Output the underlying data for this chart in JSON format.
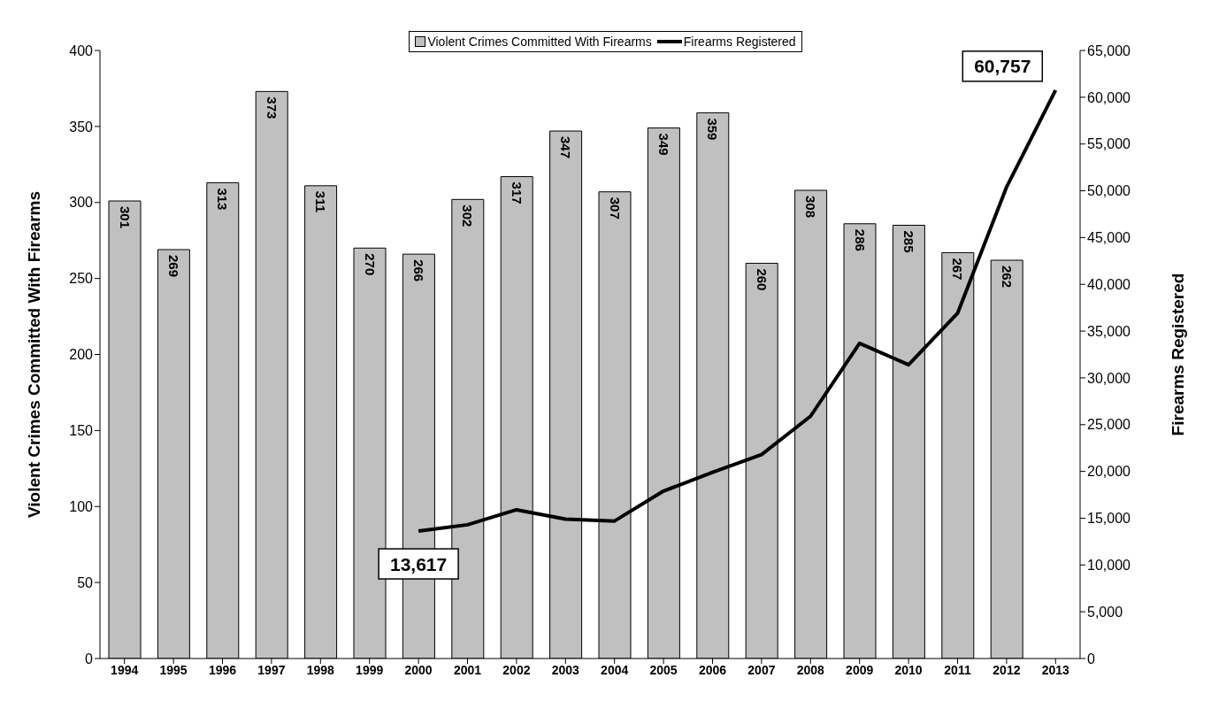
{
  "chart_data": {
    "type": "bar",
    "categories": [
      "1994",
      "1995",
      "1996",
      "1997",
      "1998",
      "1999",
      "2000",
      "2001",
      "2002",
      "2003",
      "2004",
      "2005",
      "2006",
      "2007",
      "2008",
      "2009",
      "2010",
      "2011",
      "2012",
      "2013"
    ],
    "series": [
      {
        "name": "Violent Crimes Committed With Firearms",
        "color": "#c0c0c0",
        "values": [
          301,
          269,
          313,
          373,
          311,
          270,
          266,
          302,
          317,
          347,
          307,
          349,
          359,
          260,
          308,
          286,
          285,
          267,
          262,
          null
        ],
        "value_labels": [
          "301",
          "269",
          "313",
          "373",
          "311",
          "270",
          "266",
          "302",
          "317",
          "347",
          "307",
          "349",
          "359",
          "260",
          "308",
          "286",
          "285",
          "267",
          "262",
          null
        ]
      },
      {
        "name": "Firearms Registered",
        "type": "line",
        "axis": "y2",
        "color": "#000000",
        "values": [
          null,
          null,
          null,
          null,
          null,
          null,
          13617,
          14300,
          15900,
          14900,
          14700,
          17900,
          19900,
          21800,
          25900,
          33700,
          31400,
          36900,
          50400,
          60757
        ],
        "value_labels": [
          null,
          null,
          null,
          null,
          null,
          null,
          "13,617",
          null,
          null,
          null,
          null,
          null,
          null,
          null,
          null,
          null,
          null,
          null,
          null,
          "60,757"
        ]
      }
    ],
    "ylabel": "Violent Crimes Committed With Firearms",
    "y2label": "Firearms Registered",
    "ylim": [
      0,
      400
    ],
    "yticks": [
      0,
      50,
      100,
      150,
      200,
      250,
      300,
      350,
      400
    ],
    "y2lim": [
      0,
      65000
    ],
    "y2ticks": [
      0,
      {
        "value": 5000,
        "label": "5,000"
      },
      {
        "value": 10000,
        "label": "10,000"
      },
      {
        "value": 15000,
        "label": "15,000"
      },
      {
        "value": 20000,
        "label": "20,000"
      },
      {
        "value": 25000,
        "label": "25,000"
      },
      {
        "value": 30000,
        "label": "30,000"
      },
      {
        "value": 35000,
        "label": "35,000"
      },
      {
        "value": 40000,
        "label": "40,000"
      },
      {
        "value": 45000,
        "label": "45,000"
      },
      {
        "value": 50000,
        "label": "50,000"
      },
      {
        "value": 55000,
        "label": "55,000"
      },
      {
        "value": 60000,
        "label": "60,000"
      },
      {
        "value": 65000,
        "label": "65,000"
      }
    ],
    "legend": "top",
    "grid": false,
    "marker": "none",
    "line_style": "solid"
  }
}
